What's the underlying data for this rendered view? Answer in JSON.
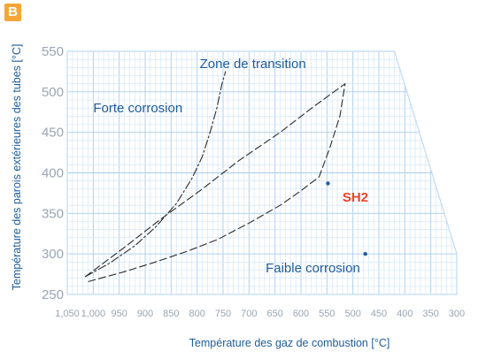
{
  "panel_label": "B",
  "chart_data": {
    "type": "line",
    "xlabel": "Température des gaz de combustion [°C]",
    "ylabel": "Température des parois extérieures des tubes [°C]",
    "xlim": [
      1050,
      300
    ],
    "ylim": [
      250,
      550
    ],
    "x_ticks": [
      "1,050",
      "1,000",
      "950",
      "900",
      "850",
      "800",
      "750",
      "700",
      "650",
      "600",
      "550",
      "500",
      "450",
      "400",
      "350",
      "300"
    ],
    "y_ticks": [
      "250",
      "300",
      "350",
      "400",
      "450",
      "500",
      "550"
    ],
    "grid": true,
    "envelope": [
      [
        1050,
        550
      ],
      [
        420,
        550
      ],
      [
        300,
        300
      ],
      [
        300,
        250
      ],
      [
        1050,
        250
      ]
    ],
    "series": [
      {
        "style": "dash-dot",
        "values": [
          [
            1015,
            272
          ],
          [
            970,
            288
          ],
          [
            920,
            310
          ],
          [
            880,
            333
          ],
          [
            840,
            362
          ],
          [
            810,
            393
          ],
          [
            790,
            420
          ],
          [
            775,
            450
          ],
          [
            762,
            480
          ],
          [
            752,
            510
          ],
          [
            745,
            525
          ]
        ]
      },
      {
        "style": "dash",
        "values": [
          [
            1015,
            272
          ],
          [
            940,
            308
          ],
          [
            870,
            343
          ],
          [
            790,
            380
          ],
          [
            720,
            415
          ],
          [
            640,
            450
          ],
          [
            575,
            482
          ],
          [
            515,
            510
          ],
          [
            525,
            470
          ],
          [
            545,
            430
          ],
          [
            565,
            395
          ],
          [
            600,
            378
          ],
          [
            640,
            360
          ],
          [
            700,
            338
          ],
          [
            760,
            318
          ],
          [
            820,
            303
          ],
          [
            880,
            290
          ],
          [
            940,
            278
          ],
          [
            1015,
            265
          ]
        ]
      }
    ],
    "points": [
      {
        "x": 548,
        "y": 387
      },
      {
        "x": 476,
        "y": 300
      }
    ],
    "annotations": [
      {
        "text": "Zone de transition",
        "x": 795,
        "y": 535
      },
      {
        "text": "Forte corrosion",
        "x": 1000,
        "y": 480
      },
      {
        "text": "SH2",
        "x": 520,
        "y": 370
      },
      {
        "text": "Faible corrosion",
        "x": 668,
        "y": 283
      }
    ]
  },
  "colors": {
    "grid_minor": "#cfe3f5",
    "grid_major": "#a9cdee",
    "envelope": "#bfdcf5",
    "curve": "#2b2b2b",
    "point": "#1f5c99",
    "label": "#1f5c99",
    "highlight": "#e8452c",
    "badge": "#f5a637"
  }
}
